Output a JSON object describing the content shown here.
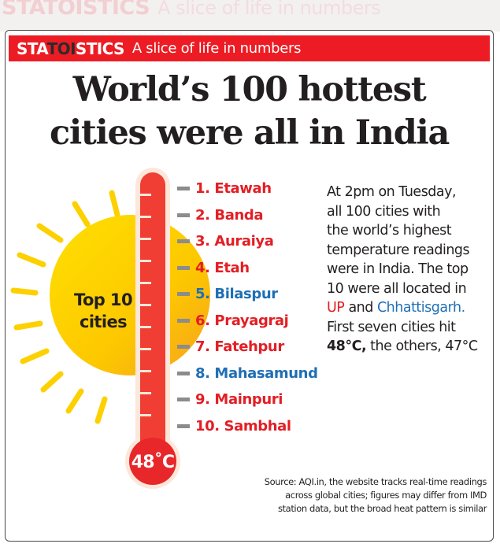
{
  "background_strip": {
    "brand": "STATOISTICS",
    "tagline": "A slice of life in numbers"
  },
  "header": {
    "brand_pre": "STA",
    "brand_mid": "TOI",
    "brand_post": "STICS",
    "tagline": "A slice of life in numbers"
  },
  "headline": {
    "line1": "World’s 100 hottest",
    "line2": "cities were all in India"
  },
  "thermometer": {
    "reading": "48˚C",
    "sun_label_line1": "Top 10",
    "sun_label_line2": "cities"
  },
  "cities": [
    {
      "label": "1. Etawah",
      "state": "UP"
    },
    {
      "label": "2. Banda",
      "state": "UP"
    },
    {
      "label": "3. Auraiya",
      "state": "UP"
    },
    {
      "label": "4. Etah",
      "state": "UP"
    },
    {
      "label": "5. Bilaspur",
      "state": "Chhattisgarh"
    },
    {
      "label": "6. Prayagraj",
      "state": "UP"
    },
    {
      "label": "7. Fatehpur",
      "state": "UP"
    },
    {
      "label": "8. Mahasamund",
      "state": "Chhattisgarh"
    },
    {
      "label": "9. Mainpuri",
      "state": "UP"
    },
    {
      "label": "10. Sambhal",
      "state": "UP"
    }
  ],
  "story": {
    "l1": "At 2pm on Tuesday,",
    "l2": "all 100 cities with",
    "l3": "the world’s highest",
    "l4": "temperature readings",
    "l5": "were in India. The top",
    "l6": "10 were all located in",
    "up": "UP",
    "and": " and ",
    "cg": "Chhattisgarh.",
    "l8": "First seven cities hit",
    "temp_hi": "48°C,",
    "rest": " the others, 47°C"
  },
  "source": {
    "l1": "Source: AQI.in, the website tracks real-time readings",
    "l2": "across global cities; figures may differ from IMD",
    "l3": "station data, but the broad heat pattern is similar"
  },
  "colors": {
    "brand_red": "#ed1c24",
    "up_red": "#e31e24",
    "chhattisgarh_blue": "#1f6fb5",
    "sun_yellow": "#fdd000",
    "sun_orange": "#f7a51e"
  }
}
